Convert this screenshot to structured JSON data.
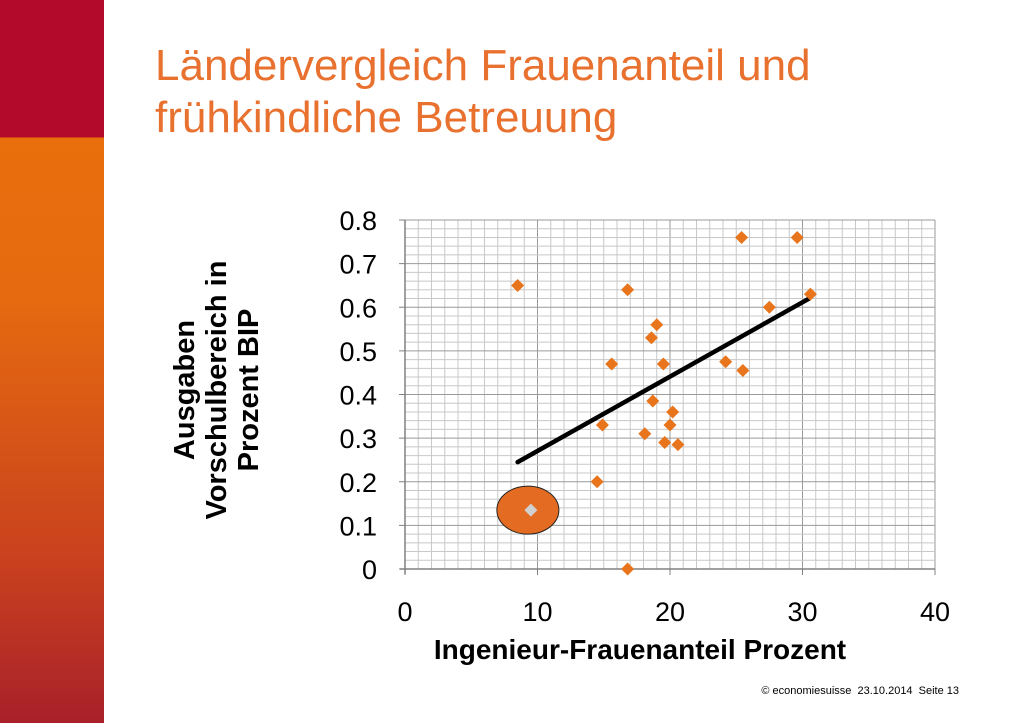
{
  "slide": {
    "title_line1": "Ländervergleich Frauenanteil und",
    "title_line2": "frühkindliche Betreuung",
    "footer_copyright": "© economiesuisse",
    "footer_date": "23.10.2014",
    "footer_page": "Seite 13"
  },
  "colors": {
    "title": "#e9712f",
    "points": "#e8741b",
    "highlight_fill": "#e46c22",
    "highlight_point": "#d0d0d0",
    "trendline": "#000000",
    "sidebar_top": "#b3092a",
    "sidebar_bottom": "#e56a10"
  },
  "chart_data": {
    "type": "scatter",
    "xlabel": "Ingenieur-Frauenanteil Prozent",
    "ylabel": "Ausgaben Vorschulbereich in Prozent BIP",
    "xlim": [
      0,
      40
    ],
    "ylim": [
      0,
      0.8
    ],
    "xticks": [
      "0",
      "10",
      "20",
      "30",
      "40"
    ],
    "yticks": [
      "0",
      "0.1",
      "0.2",
      "0.3",
      "0.4",
      "0.5",
      "0.6",
      "0.7",
      "0.8"
    ],
    "grid": true,
    "points": [
      {
        "x": 8.5,
        "y": 0.65
      },
      {
        "x": 16.8,
        "y": 0.64
      },
      {
        "x": 25.4,
        "y": 0.76
      },
      {
        "x": 29.6,
        "y": 0.76
      },
      {
        "x": 30.6,
        "y": 0.63
      },
      {
        "x": 27.5,
        "y": 0.6
      },
      {
        "x": 19.0,
        "y": 0.56
      },
      {
        "x": 18.6,
        "y": 0.53
      },
      {
        "x": 15.6,
        "y": 0.47
      },
      {
        "x": 19.5,
        "y": 0.47
      },
      {
        "x": 24.2,
        "y": 0.475
      },
      {
        "x": 25.5,
        "y": 0.455
      },
      {
        "x": 18.7,
        "y": 0.385
      },
      {
        "x": 20.2,
        "y": 0.36
      },
      {
        "x": 14.9,
        "y": 0.33
      },
      {
        "x": 20.0,
        "y": 0.33
      },
      {
        "x": 18.1,
        "y": 0.31
      },
      {
        "x": 19.6,
        "y": 0.29
      },
      {
        "x": 20.6,
        "y": 0.285
      },
      {
        "x": 14.5,
        "y": 0.2
      },
      {
        "x": 16.8,
        "y": 0.0
      }
    ],
    "highlighted_point": {
      "x": 9.5,
      "y": 0.135
    },
    "trendline": {
      "x": [
        8.5,
        30.5
      ],
      "y": [
        0.245,
        0.62
      ]
    }
  }
}
